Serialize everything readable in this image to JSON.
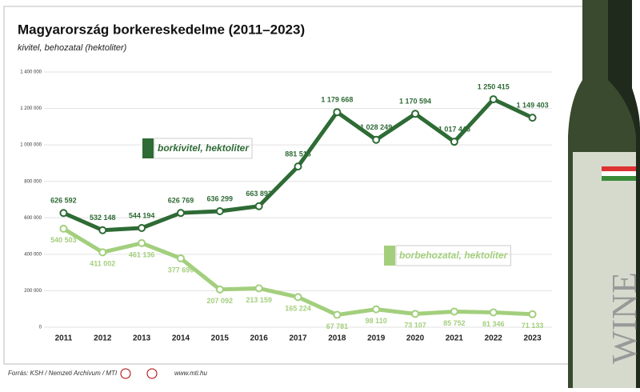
{
  "chart_data": {
    "type": "line",
    "title": "Magyarország borkereskedelme (2011–2023)",
    "subtitle": "kivitel, behozatal (hektoliter)",
    "categories": [
      "2011",
      "2012",
      "2013",
      "2014",
      "2015",
      "2016",
      "2017",
      "2018",
      "2019",
      "2020",
      "2021",
      "2022",
      "2023"
    ],
    "series": [
      {
        "name": "borkivitel, hektoliter",
        "color": "#2e6b35",
        "values": [
          626592,
          532148,
          544194,
          626769,
          636299,
          663893,
          881516,
          1179668,
          1028249,
          1170594,
          1017445,
          1250415,
          1149403
        ],
        "value_labels": [
          "626 592",
          "532 148",
          "544 194",
          "626 769",
          "636 299",
          "663 893",
          "881 516",
          "1 179 668",
          "1 028 249",
          "1 170 594",
          "1 017 445",
          "1 250 415",
          "1 149 403"
        ]
      },
      {
        "name": "borbehozatal, hektoliter",
        "color": "#a3cf7d",
        "values": [
          540503,
          411002,
          461136,
          377699,
          207092,
          213159,
          165224,
          67781,
          98110,
          73107,
          85752,
          81346,
          71133
        ],
        "value_labels": [
          "540 503",
          "411 002",
          "461 136",
          "377 699",
          "207 092",
          "213 159",
          "165 224",
          "67 781",
          "98 110",
          "73 107",
          "85 752",
          "81 346",
          "71 133"
        ]
      }
    ],
    "ylim": [
      0,
      1400000
    ],
    "yticks": [
      0,
      {
        "value": 200000,
        "label": "200 000"
      },
      {
        "value": 400000,
        "label": "400 000"
      },
      {
        "value": 600000,
        "label": "600 000"
      },
      {
        "value": 800000,
        "label": "800 000"
      },
      {
        "value": 1000000,
        "label": "1 000 000"
      },
      {
        "value": 1200000,
        "label": "1 200 000"
      },
      {
        "value": 1400000,
        "label": "1 400 000"
      }
    ],
    "grid": true,
    "source": "Forrás: KSH / Nemzeti Archívum / MTI",
    "website": "www.mti.hu",
    "bottle_label": "WINE"
  }
}
